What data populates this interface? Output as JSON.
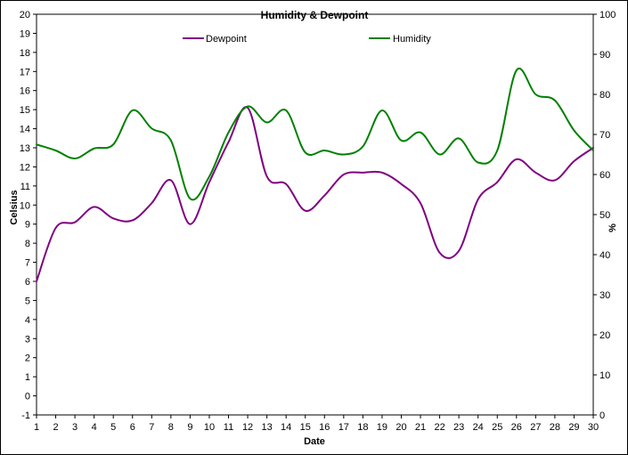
{
  "chart_data": {
    "type": "line",
    "title": "Humidity & Dewpoint",
    "xlabel": "Date",
    "ylabel": "Celsius",
    "y2label": "%",
    "x": [
      1,
      2,
      3,
      4,
      5,
      6,
      7,
      8,
      9,
      10,
      11,
      12,
      13,
      14,
      15,
      16,
      17,
      18,
      19,
      20,
      21,
      22,
      23,
      24,
      25,
      26,
      27,
      28,
      29,
      30
    ],
    "x_ticks": [
      "1",
      "2",
      "3",
      "4",
      "5",
      "6",
      "7",
      "8",
      "9",
      "10",
      "11",
      "12",
      "13",
      "14",
      "15",
      "16",
      "17",
      "18",
      "19",
      "20",
      "21",
      "22",
      "23",
      "24",
      "25",
      "26",
      "27",
      "28",
      "29",
      "30"
    ],
    "ylim": [
      -1,
      20
    ],
    "y_ticks": [
      "-1",
      "0",
      "1",
      "2",
      "3",
      "4",
      "5",
      "6",
      "7",
      "8",
      "9",
      "10",
      "11",
      "12",
      "13",
      "14",
      "15",
      "16",
      "17",
      "18",
      "19",
      "20"
    ],
    "y2lim": [
      0,
      100
    ],
    "y2_ticks": [
      "0",
      "10",
      "20",
      "30",
      "40",
      "50",
      "60",
      "70",
      "80",
      "90",
      "100"
    ],
    "grid": false,
    "legend_position": "top",
    "series": [
      {
        "name": "Dewpoint",
        "axis": "left",
        "color": "#800080",
        "values": [
          6.0,
          8.8,
          9.1,
          9.9,
          9.3,
          9.2,
          10.1,
          11.3,
          9.0,
          11.2,
          13.3,
          15.1,
          11.5,
          11.1,
          9.7,
          10.5,
          11.6,
          11.7,
          11.7,
          11.1,
          10.1,
          7.5,
          7.6,
          10.3,
          11.2,
          12.4,
          11.7,
          11.3,
          12.3,
          13.0
        ]
      },
      {
        "name": "Humidity",
        "axis": "right",
        "color": "#008000",
        "values": [
          67.5,
          66.0,
          64.0,
          66.5,
          67.5,
          76.0,
          71.5,
          68.5,
          54.0,
          59.5,
          70.5,
          77.0,
          73.0,
          76.0,
          65.5,
          66.0,
          65.0,
          67.0,
          76.0,
          68.5,
          70.5,
          65.0,
          69.0,
          63.0,
          66.0,
          86.0,
          80.0,
          78.5,
          71.0,
          66.0
        ]
      }
    ]
  }
}
